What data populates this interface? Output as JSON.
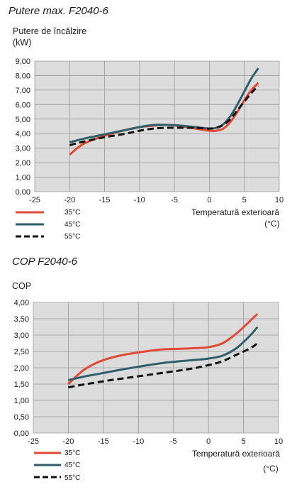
{
  "charts": {
    "power": {
      "title": "Putere max. F2040-6",
      "ylabel_line1": "Putere de încălzire",
      "ylabel_line2": "(kW)",
      "xlabel_line1": "Temperatură exterioară",
      "xlabel_line2": "(°C)"
    },
    "cop": {
      "title": "COP F2040-6",
      "ylabel_line1": "COP",
      "xlabel_line1": "Temperatură exterioară",
      "xlabel_line2": "(°C)"
    }
  },
  "colors": {
    "plot_bg": "#dcdcdc",
    "s35": "#e04a35",
    "s45": "#2f5f6a",
    "s55": "#111111"
  },
  "chart_data": [
    {
      "type": "line",
      "title": "Putere max. F2040-6",
      "xlabel": "Temperatură exterioară (°C)",
      "ylabel": "Putere de încălzire (kW)",
      "xlim": [
        -25,
        10
      ],
      "ylim": [
        0,
        9
      ],
      "xticks": [
        "-25",
        "-20",
        "-15",
        "-10",
        "-5",
        "0",
        "5",
        "10"
      ],
      "yticks": [
        "0,00",
        "1,00",
        "2,00",
        "3,00",
        "4,00",
        "5,00",
        "6,00",
        "7,00",
        "8,00",
        "9,00"
      ],
      "grid": true,
      "legend": "bottom-left",
      "series": [
        {
          "name": "35°C",
          "style": "solid",
          "color": "#e04a35",
          "x": [
            -20,
            -18,
            -15,
            -12,
            -10,
            -8,
            -6,
            -4,
            -2,
            0,
            1,
            2,
            3,
            4,
            5,
            6,
            7
          ],
          "y": [
            2.55,
            3.3,
            3.85,
            4.25,
            4.45,
            4.55,
            4.6,
            4.5,
            4.35,
            4.2,
            4.2,
            4.35,
            4.8,
            5.5,
            6.3,
            7.0,
            7.5
          ]
        },
        {
          "name": "45°C",
          "style": "solid",
          "color": "#2f5f6a",
          "x": [
            -20,
            -18,
            -15,
            -12,
            -10,
            -8,
            -6,
            -4,
            -2,
            0,
            1,
            2,
            3,
            4,
            5,
            6,
            7
          ],
          "y": [
            3.4,
            3.65,
            3.95,
            4.25,
            4.45,
            4.6,
            4.6,
            4.55,
            4.45,
            4.35,
            4.4,
            4.65,
            5.2,
            6.0,
            6.9,
            7.8,
            8.5
          ]
        },
        {
          "name": "55°C",
          "style": "dashed",
          "color": "#111111",
          "x": [
            -20,
            -18,
            -15,
            -12,
            -10,
            -8,
            -6,
            -4,
            -2,
            0,
            1,
            2,
            3,
            4,
            5,
            6,
            7
          ],
          "y": [
            3.2,
            3.45,
            3.75,
            4.0,
            4.2,
            4.35,
            4.4,
            4.4,
            4.4,
            4.35,
            4.4,
            4.6,
            5.0,
            5.6,
            6.2,
            6.8,
            7.3
          ]
        }
      ]
    },
    {
      "type": "line",
      "title": "COP F2040-6",
      "xlabel": "Temperatură exterioară (°C)",
      "ylabel": "COP",
      "xlim": [
        -25,
        10
      ],
      "ylim": [
        0,
        4
      ],
      "xticks": [
        "-25",
        "-20",
        "-15",
        "-10",
        "-5",
        "0",
        "5",
        "10"
      ],
      "yticks": [
        "0,00",
        "0,50",
        "1,00",
        "1,50",
        "2,00",
        "2,50",
        "3,00",
        "3,50",
        "4,00"
      ],
      "grid": true,
      "legend": "bottom-left",
      "series": [
        {
          "name": "35°C",
          "style": "solid",
          "color": "#e04a35",
          "x": [
            -20,
            -18,
            -16,
            -14,
            -12,
            -10,
            -8,
            -6,
            -4,
            -2,
            0,
            2,
            4,
            6,
            7
          ],
          "y": [
            1.5,
            1.9,
            2.15,
            2.3,
            2.4,
            2.47,
            2.53,
            2.57,
            2.58,
            2.6,
            2.63,
            2.75,
            3.05,
            3.45,
            3.65
          ]
        },
        {
          "name": "45°C",
          "style": "solid",
          "color": "#2f5f6a",
          "x": [
            -20,
            -18,
            -16,
            -14,
            -12,
            -10,
            -8,
            -6,
            -4,
            -2,
            0,
            2,
            4,
            6,
            7
          ],
          "y": [
            1.62,
            1.72,
            1.8,
            1.88,
            1.96,
            2.03,
            2.1,
            2.16,
            2.2,
            2.24,
            2.28,
            2.37,
            2.6,
            3.0,
            3.25
          ]
        },
        {
          "name": "55°C",
          "style": "dashed",
          "color": "#111111",
          "x": [
            -20,
            -18,
            -16,
            -14,
            -12,
            -10,
            -8,
            -6,
            -4,
            -2,
            0,
            2,
            4,
            6,
            7
          ],
          "y": [
            1.4,
            1.48,
            1.55,
            1.62,
            1.68,
            1.74,
            1.8,
            1.86,
            1.92,
            1.99,
            2.08,
            2.2,
            2.4,
            2.6,
            2.75
          ]
        }
      ]
    }
  ]
}
